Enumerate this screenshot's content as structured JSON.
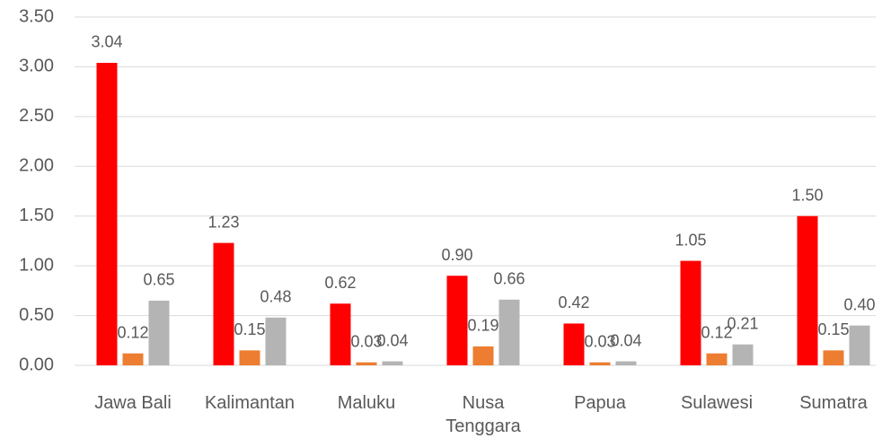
{
  "chart_data": {
    "type": "bar",
    "categories": [
      "Jawa Bali",
      "Kalimantan",
      "Maluku",
      "Nusa Tenggara",
      "Papua",
      "Sulawesi",
      "Sumatra"
    ],
    "series": [
      {
        "color": "#ff0000",
        "values": [
          3.04,
          1.23,
          0.62,
          0.9,
          0.42,
          1.05,
          1.5
        ],
        "value_labels": [
          "3.04",
          "1.23",
          "0.62",
          "0.90",
          "0.42",
          "1.05",
          "1.50"
        ]
      },
      {
        "color": "#ed7d31",
        "values": [
          0.12,
          0.15,
          0.03,
          0.19,
          0.03,
          0.12,
          0.15
        ],
        "value_labels": [
          "0.12",
          "0.15",
          "0.03",
          "0.19",
          "0.03",
          "0.12",
          "0.15"
        ]
      },
      {
        "color": "#b4b4b4",
        "values": [
          0.65,
          0.48,
          0.04,
          0.66,
          0.04,
          0.21,
          0.4
        ],
        "value_labels": [
          "0.65",
          "0.48",
          "0.04",
          "0.66",
          "0.04",
          "0.21",
          "0.40"
        ]
      }
    ],
    "ylim": [
      0,
      3.5
    ],
    "yticks": [
      {
        "value": 0,
        "label": "0.00"
      },
      {
        "value": 0.5,
        "label": "0.50"
      },
      {
        "value": 1,
        "label": "1.00"
      },
      {
        "value": 1.5,
        "label": "1.50"
      },
      {
        "value": 2,
        "label": "2.00"
      },
      {
        "value": 2.5,
        "label": "2.50"
      },
      {
        "value": 3,
        "label": "3.00"
      },
      {
        "value": 3.5,
        "label": "3.50"
      }
    ],
    "grid": true
  }
}
